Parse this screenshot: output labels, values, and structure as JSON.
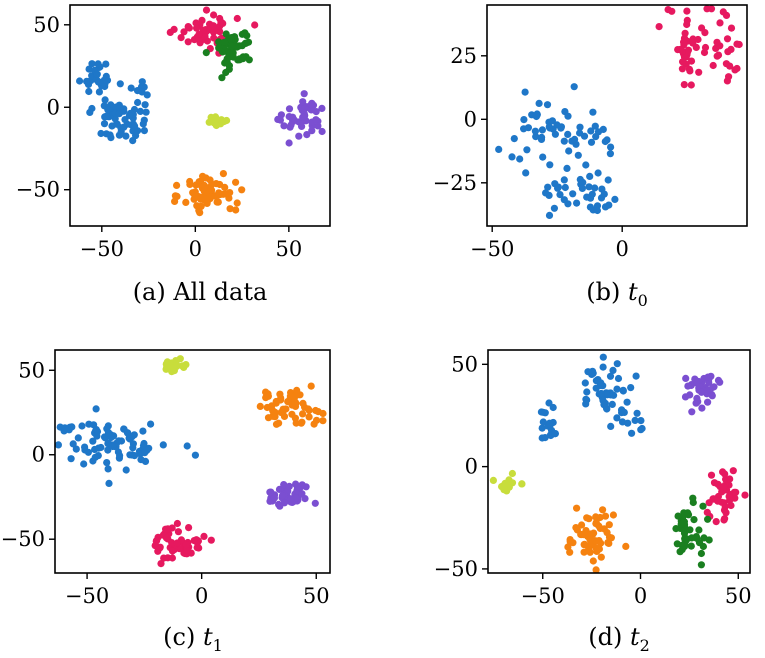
{
  "colors": {
    "blue": "#1f77c8",
    "pink": "#e6195f",
    "green": "#1a7f20",
    "purple": "#7b4fd1",
    "orange": "#f58210",
    "yellow": "#c8dd3c"
  },
  "chart_data": [
    {
      "type": "scatter",
      "caption": "(a) All data",
      "xlim": [
        -67,
        72
      ],
      "ylim": [
        -72,
        62
      ],
      "xticks": [
        -50,
        0,
        50
      ],
      "xtick_labels": [
        "−50",
        "0",
        "50"
      ],
      "yticks": [
        -50,
        0,
        50
      ],
      "ytick_labels": [
        "−50",
        "0",
        "50"
      ],
      "series": [
        {
          "name": "blue",
          "color": "blue",
          "clusters": [
            {
              "cx": -53,
              "cy": 19,
              "sx": 5,
              "sy": 5,
              "n": 25
            },
            {
              "cx": -30,
              "cy": 13,
              "sx": 2,
              "sy": 4,
              "n": 6
            },
            {
              "cx": -40,
              "cy": -6,
              "sx": 7,
              "sy": 8,
              "n": 65
            }
          ]
        },
        {
          "name": "pink",
          "color": "pink",
          "clusters": [
            {
              "cx": 6,
              "cy": 46,
              "sx": 8,
              "sy": 5,
              "n": 55
            }
          ]
        },
        {
          "name": "green",
          "color": "green",
          "clusters": [
            {
              "cx": 20,
              "cy": 36,
              "sx": 5,
              "sy": 7,
              "n": 55
            }
          ]
        },
        {
          "name": "purple",
          "color": "purple",
          "clusters": [
            {
              "cx": 59,
              "cy": -8,
              "sx": 6,
              "sy": 6,
              "n": 45
            }
          ]
        },
        {
          "name": "orange",
          "color": "orange",
          "clusters": [
            {
              "cx": 7,
              "cy": -52,
              "sx": 7,
              "sy": 6,
              "n": 70
            }
          ]
        },
        {
          "name": "yellow",
          "color": "yellow",
          "clusters": [
            {
              "cx": 13,
              "cy": -8,
              "sx": 3,
              "sy": 2,
              "n": 15
            }
          ]
        }
      ]
    },
    {
      "type": "scatter",
      "caption_prefix": "(b) ",
      "caption_math": "t",
      "caption_sub": "0",
      "xlim": [
        -52,
        48
      ],
      "ylim": [
        -42,
        45
      ],
      "xticks": [
        -50,
        0
      ],
      "xtick_labels": [
        "−50",
        "0"
      ],
      "yticks": [
        -25,
        0,
        25
      ],
      "ytick_labels": [
        "−25",
        "0",
        "25"
      ],
      "series": [
        {
          "name": "blue",
          "color": "blue",
          "clusters": [
            {
              "cx": -33,
              "cy": -5,
              "sx": 9,
              "sy": 6,
              "n": 35
            },
            {
              "cx": -12,
              "cy": -4,
              "sx": 6,
              "sy": 6,
              "n": 20
            },
            {
              "cx": -14,
              "cy": -29,
              "sx": 9,
              "sy": 5,
              "n": 40
            }
          ]
        },
        {
          "name": "pink",
          "color": "pink",
          "clusters": [
            {
              "cx": 25,
              "cy": 28,
              "sx": 4,
              "sy": 8,
              "n": 35
            },
            {
              "cx": 40,
              "cy": 30,
              "sx": 4,
              "sy": 8,
              "n": 25
            }
          ]
        }
      ]
    },
    {
      "type": "scatter",
      "caption_prefix": "(c) ",
      "caption_math": "t",
      "caption_sub": "1",
      "xlim": [
        -64,
        56
      ],
      "ylim": [
        -70,
        62
      ],
      "xticks": [
        -50,
        0,
        50
      ],
      "xtick_labels": [
        "−50",
        "0",
        "50"
      ],
      "yticks": [
        -50,
        0,
        50
      ],
      "ytick_labels": [
        "−50",
        "0",
        "50"
      ],
      "series": [
        {
          "name": "blue",
          "color": "blue",
          "clusters": [
            {
              "cx": -38,
              "cy": 6,
              "sx": 12,
              "sy": 7,
              "n": 80
            },
            {
              "cx": -58,
              "cy": 16,
              "sx": 2,
              "sy": 1,
              "n": 6
            }
          ]
        },
        {
          "name": "yellow",
          "color": "yellow",
          "clusters": [
            {
              "cx": -12,
              "cy": 53,
              "sx": 3,
              "sy": 2,
              "n": 20
            }
          ]
        },
        {
          "name": "orange",
          "color": "orange",
          "clusters": [
            {
              "cx": 38,
              "cy": 28,
              "sx": 7,
              "sy": 5,
              "n": 55
            }
          ]
        },
        {
          "name": "purple",
          "color": "purple",
          "clusters": [
            {
              "cx": 38,
              "cy": -24,
              "sx": 5,
              "sy": 4,
              "n": 45
            }
          ]
        },
        {
          "name": "pink",
          "color": "pink",
          "clusters": [
            {
              "cx": -10,
              "cy": -52,
              "sx": 5,
              "sy": 5,
              "n": 55
            }
          ]
        }
      ]
    },
    {
      "type": "scatter",
      "caption_prefix": "(d) ",
      "caption_math": "t",
      "caption_sub": "2",
      "xlim": [
        -78,
        56
      ],
      "ylim": [
        -52,
        57
      ],
      "xticks": [
        -50,
        0,
        50
      ],
      "xtick_labels": [
        "−50",
        "0",
        "50"
      ],
      "yticks": [
        -50,
        0,
        50
      ],
      "ytick_labels": [
        "−50",
        "0",
        "50"
      ],
      "series": [
        {
          "name": "blue",
          "color": "blue",
          "clusters": [
            {
              "cx": -47,
              "cy": 22,
              "sx": 3,
              "sy": 6,
              "n": 20
            },
            {
              "cx": -18,
              "cy": 38,
              "sx": 7,
              "sy": 6,
              "n": 45
            },
            {
              "cx": -6,
              "cy": 22,
              "sx": 4,
              "sy": 4,
              "n": 12
            }
          ]
        },
        {
          "name": "purple",
          "color": "purple",
          "clusters": [
            {
              "cx": 32,
              "cy": 38,
              "sx": 6,
              "sy": 4,
              "n": 40
            }
          ]
        },
        {
          "name": "yellow",
          "color": "yellow",
          "clusters": [
            {
              "cx": -67,
              "cy": -9,
              "sx": 4,
              "sy": 2,
              "n": 15
            }
          ]
        },
        {
          "name": "pink",
          "color": "pink",
          "clusters": [
            {
              "cx": 43,
              "cy": -13,
              "sx": 4,
              "sy": 7,
              "n": 40
            }
          ]
        },
        {
          "name": "orange",
          "color": "orange",
          "clusters": [
            {
              "cx": -25,
              "cy": -35,
              "sx": 6,
              "sy": 6,
              "n": 60
            }
          ]
        },
        {
          "name": "green",
          "color": "green",
          "clusters": [
            {
              "cx": 24,
              "cy": -32,
              "sx": 4,
              "sy": 7,
              "n": 45
            }
          ]
        }
      ]
    }
  ]
}
